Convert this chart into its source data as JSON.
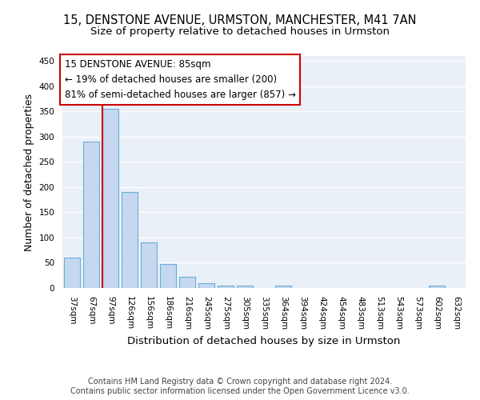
{
  "title1": "15, DENSTONE AVENUE, URMSTON, MANCHESTER, M41 7AN",
  "title2": "Size of property relative to detached houses in Urmston",
  "xlabel": "Distribution of detached houses by size in Urmston",
  "ylabel": "Number of detached properties",
  "bar_labels": [
    "37sqm",
    "67sqm",
    "97sqm",
    "126sqm",
    "156sqm",
    "186sqm",
    "216sqm",
    "245sqm",
    "275sqm",
    "305sqm",
    "335sqm",
    "364sqm",
    "394sqm",
    "424sqm",
    "454sqm",
    "483sqm",
    "513sqm",
    "543sqm",
    "573sqm",
    "602sqm",
    "632sqm"
  ],
  "bar_values": [
    60,
    290,
    355,
    190,
    90,
    47,
    22,
    10,
    5,
    5,
    0,
    5,
    0,
    0,
    0,
    0,
    0,
    0,
    0,
    5,
    0
  ],
  "bar_color": "#c5d8f0",
  "bar_edgecolor": "#6aaed6",
  "bar_linewidth": 0.8,
  "vline_color": "#cc0000",
  "annotation_line1": "15 DENSTONE AVENUE: 85sqm",
  "annotation_line2": "← 19% of detached houses are smaller (200)",
  "annotation_line3": "81% of semi-detached houses are larger (857) →",
  "annotation_box_edgecolor": "#cc0000",
  "yticks": [
    0,
    50,
    100,
    150,
    200,
    250,
    300,
    350,
    400,
    450
  ],
  "ylim": [
    0,
    460
  ],
  "footer1": "Contains HM Land Registry data © Crown copyright and database right 2024.",
  "footer2": "Contains public sector information licensed under the Open Government Licence v3.0.",
  "bg_color": "#eaf0f8",
  "grid_color": "#ffffff",
  "title1_fontsize": 10.5,
  "title2_fontsize": 9.5,
  "ylabel_fontsize": 9,
  "xlabel_fontsize": 9.5,
  "tick_fontsize": 7.5,
  "annot_fontsize": 8.5,
  "footer_fontsize": 7
}
